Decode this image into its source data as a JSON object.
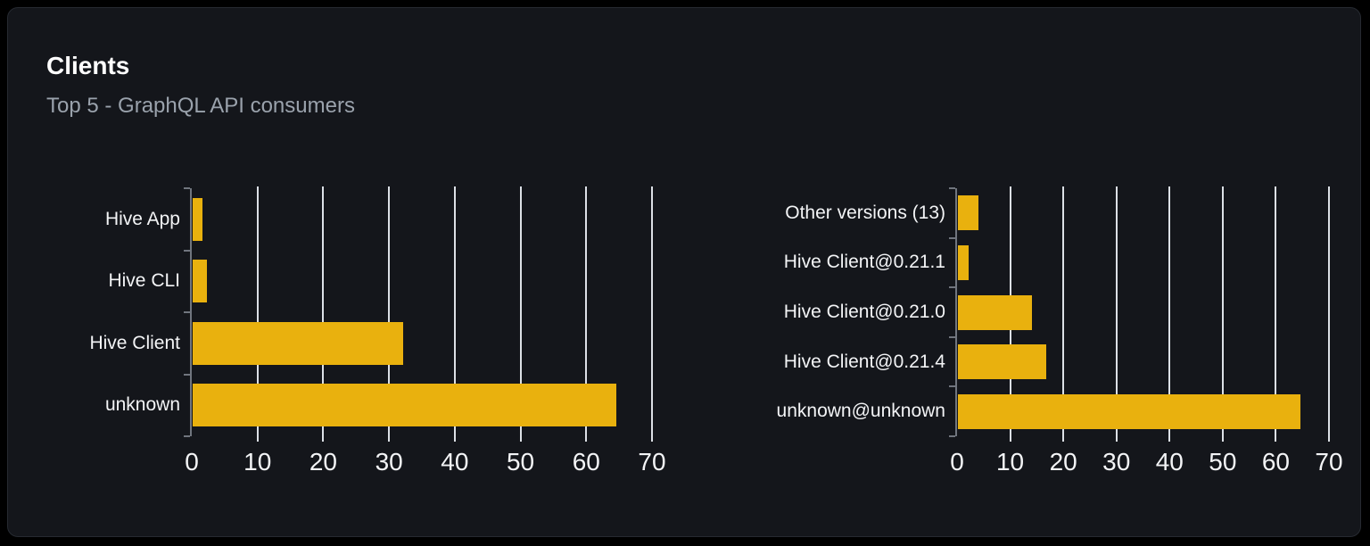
{
  "card": {
    "title": "Clients",
    "subtitle": "Top 5 - GraphQL API consumers",
    "background": "#14161b",
    "border_color": "#262a31"
  },
  "colors": {
    "bar": "#e9b10e",
    "gridline": "#dce0e6",
    "axis": "#70757e",
    "label": "#f3f4f6",
    "title": "#ffffff",
    "subtitle": "#9aa2ac",
    "page_background": "#000000"
  },
  "chart_data": [
    {
      "type": "bar",
      "orientation": "horizontal",
      "name": "clients-by-name",
      "categories": [
        "Hive App",
        "Hive CLI",
        "Hive Client",
        "unknown"
      ],
      "values": [
        1.5,
        2.2,
        32,
        64.4
      ],
      "xticks": [
        0,
        10,
        20,
        30,
        40,
        50,
        60,
        70
      ],
      "xlim": [
        0,
        70
      ],
      "ylabel": "",
      "xlabel": "",
      "grid": true,
      "legend": false
    },
    {
      "type": "bar",
      "orientation": "horizontal",
      "name": "clients-by-version",
      "categories": [
        "Other versions (13)",
        "Hive Client@0.21.1",
        "Hive Client@0.21.0",
        "Hive Client@0.21.4",
        "unknown@unknown"
      ],
      "values": [
        3.8,
        2.0,
        14.0,
        16.6,
        64.4
      ],
      "xticks": [
        0,
        10,
        20,
        30,
        40,
        50,
        60,
        70
      ],
      "xlim": [
        0,
        70
      ],
      "ylabel": "",
      "xlabel": "",
      "grid": true,
      "legend": false
    }
  ]
}
